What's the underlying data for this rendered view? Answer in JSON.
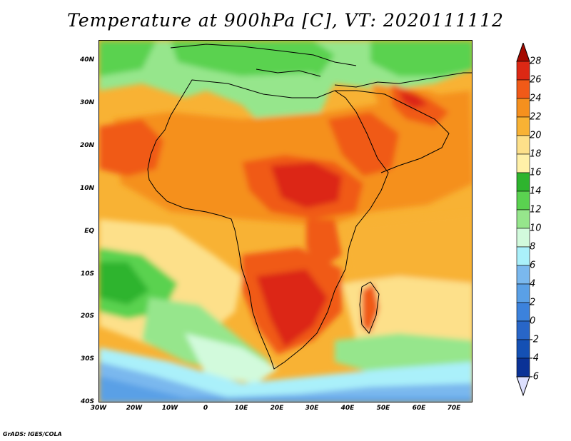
{
  "title": "Temperature at 900hPa [C], VT: 2020111112",
  "credit": "GrADS: IGES/COLA",
  "map": {
    "lat_labels": [
      "40N",
      "30N",
      "20N",
      "10N",
      "EQ",
      "10S",
      "20S",
      "30S",
      "40S"
    ],
    "lon_labels": [
      "30W",
      "20W",
      "10W",
      "0",
      "10E",
      "20E",
      "30E",
      "40E",
      "50E",
      "60E",
      "70E"
    ],
    "lat_range": [
      -40,
      45
    ],
    "lon_range": [
      -30,
      75
    ]
  },
  "colorbar": {
    "labels": [
      "28",
      "26",
      "24",
      "22",
      "20",
      "18",
      "16",
      "14",
      "12",
      "10",
      "8",
      "6",
      "4",
      "2",
      "0",
      "-2",
      "-4",
      "-6"
    ],
    "colors": [
      "#a50a00",
      "#dc2814",
      "#f05a18",
      "#f5901e",
      "#f8b234",
      "#fde08a",
      "#fff0a8",
      "#2eb42e",
      "#5ad250",
      "#96e68c",
      "#d2fadc",
      "#aaf0fa",
      "#7ab8ee",
      "#5aa0e6",
      "#3c82dc",
      "#2866c8",
      "#1450b4",
      "#0a3296",
      "#061e6e"
    ],
    "arrows": [
      "upper-over-arrow",
      "lower-under-arrow"
    ]
  }
}
